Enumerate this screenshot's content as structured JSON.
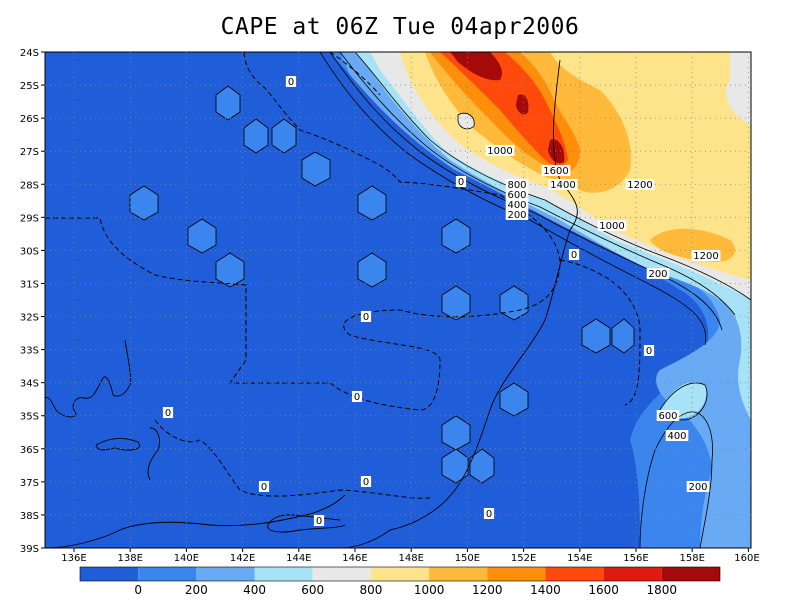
{
  "title": "CAPE at 06Z Tue 04apr2006",
  "lat_labels": [
    "24S",
    "25S",
    "26S",
    "27S",
    "28S",
    "29S",
    "30S",
    "31S",
    "32S",
    "33S",
    "34S",
    "35S",
    "36S",
    "37S",
    "38S",
    "39S"
  ],
  "lon_labels": [
    "136E",
    "138E",
    "140E",
    "142E",
    "144E",
    "146E",
    "148E",
    "150E",
    "152E",
    "154E",
    "156E",
    "158E",
    "160E"
  ],
  "colorbar": {
    "labels": [
      "0",
      "200",
      "400",
      "600",
      "800",
      "1000",
      "1200",
      "1400",
      "1600",
      "1800"
    ],
    "colors": [
      "#1f5ed8",
      "#3a85ee",
      "#69aaf4",
      "#a8e2f6",
      "#e8e8e8",
      "#fde48a",
      "#ffba3c",
      "#ff8e0a",
      "#ff4a0c",
      "#e01a10",
      "#a50a0a"
    ]
  },
  "contour_labels": [
    {
      "text": "0"
    },
    {
      "text": "0"
    },
    {
      "text": "0"
    },
    {
      "text": "0"
    },
    {
      "text": "0"
    },
    {
      "text": "0"
    },
    {
      "text": "0"
    },
    {
      "text": "0"
    },
    {
      "text": "0"
    },
    {
      "text": "0"
    },
    {
      "text": "0"
    },
    {
      "text": "1000"
    },
    {
      "text": "1600"
    },
    {
      "text": "1400"
    },
    {
      "text": "1200"
    },
    {
      "text": "800"
    },
    {
      "text": "600"
    },
    {
      "text": "400"
    },
    {
      "text": "200"
    },
    {
      "text": "1000"
    },
    {
      "text": "1200"
    },
    {
      "text": "200"
    },
    {
      "text": "600"
    },
    {
      "text": "400"
    },
    {
      "text": "200"
    }
  ]
}
